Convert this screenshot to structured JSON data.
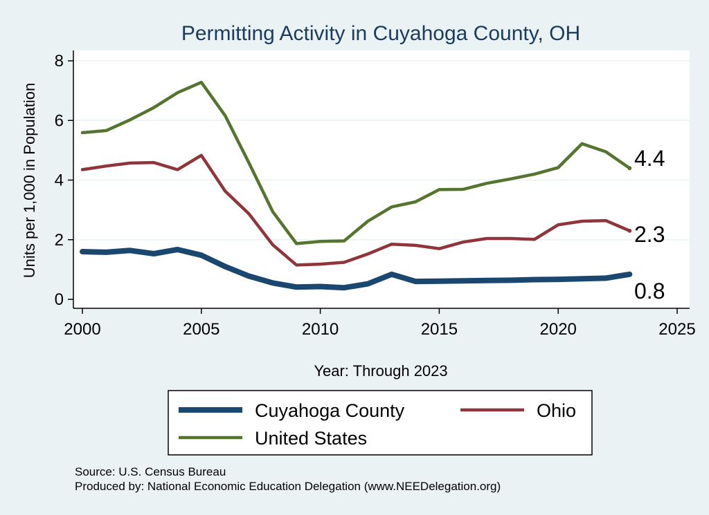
{
  "chart_data": {
    "type": "line",
    "title": "Permitting Activity in Cuyahoga County, OH",
    "xlabel": "Year: Through 2023",
    "ylabel": "Units per 1,000 in Population",
    "xlim": [
      2000,
      2025
    ],
    "ylim": [
      0,
      8
    ],
    "x_ticks": [
      2000,
      2005,
      2010,
      2015,
      2020,
      2025
    ],
    "y_ticks": [
      0,
      2,
      4,
      6,
      8
    ],
    "grid": true,
    "legend_position": "bottom",
    "x": [
      2000,
      2001,
      2002,
      2003,
      2004,
      2005,
      2006,
      2007,
      2008,
      2009,
      2010,
      2011,
      2012,
      2013,
      2014,
      2015,
      2016,
      2017,
      2018,
      2019,
      2020,
      2021,
      2022,
      2023
    ],
    "series": [
      {
        "name": "Cuyahoga County",
        "color": "#1a476f",
        "values": [
          1.6,
          1.58,
          1.64,
          1.53,
          1.67,
          1.48,
          1.1,
          0.78,
          0.55,
          0.41,
          0.43,
          0.39,
          0.52,
          0.84,
          0.6,
          0.61,
          0.62,
          0.63,
          0.64,
          0.66,
          0.67,
          0.69,
          0.71,
          0.84
        ],
        "end_label": "0.8"
      },
      {
        "name": "Ohio",
        "color": "#90353b",
        "values": [
          4.35,
          4.47,
          4.57,
          4.59,
          4.35,
          4.83,
          3.63,
          2.87,
          1.83,
          1.15,
          1.18,
          1.24,
          1.52,
          1.85,
          1.81,
          1.7,
          1.92,
          2.04,
          2.04,
          2.01,
          2.5,
          2.62,
          2.64,
          2.3
        ],
        "end_label": "2.3"
      },
      {
        "name": "United States",
        "color": "#55752f",
        "values": [
          5.59,
          5.66,
          6.02,
          6.43,
          6.93,
          7.28,
          6.16,
          4.58,
          2.94,
          1.87,
          1.94,
          1.96,
          2.62,
          3.1,
          3.27,
          3.68,
          3.69,
          3.89,
          4.04,
          4.2,
          4.42,
          5.22,
          4.95,
          4.4
        ],
        "end_label": "4.4"
      }
    ],
    "source": "Source: U.S. Census Bureau",
    "produced_by": "Produced by: National Economic Education Delegation (www.NEEDelegation.org)"
  },
  "colors": {
    "background": "#eaf2f3",
    "plot_background": "#ffffff",
    "title": "#1a3a5e",
    "grid": "#eaf2f3"
  }
}
